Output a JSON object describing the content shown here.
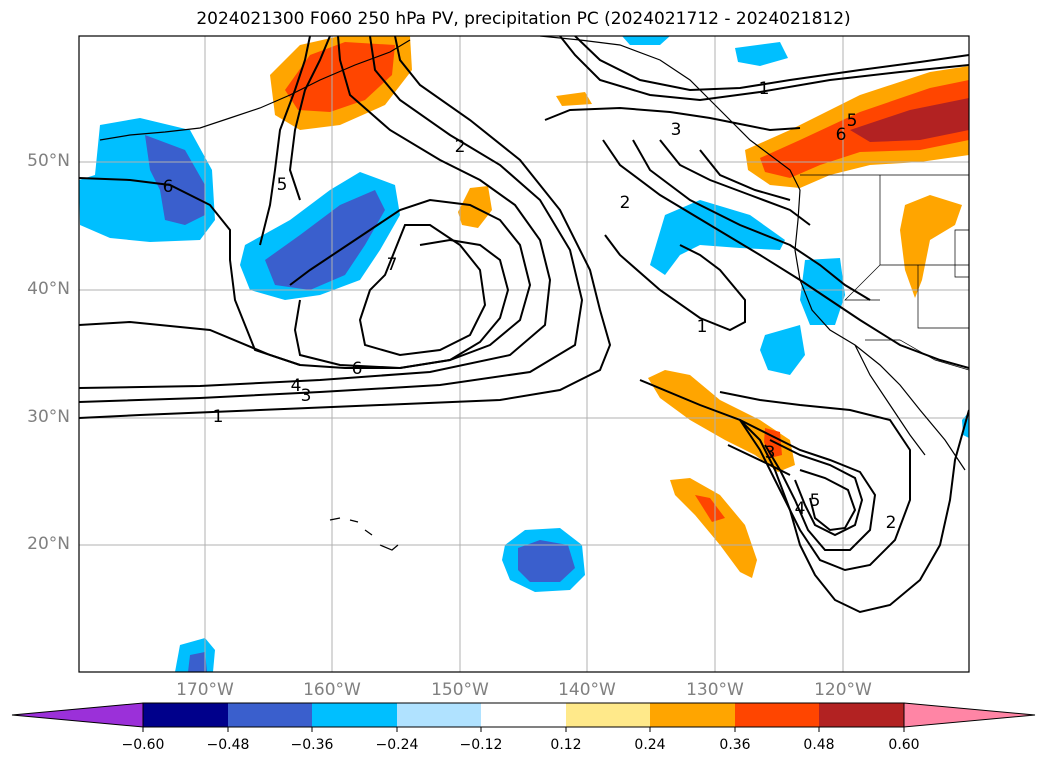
{
  "title": "2024021300 F060 250 hPa PV, precipitation PC (2024021712 - 2024021812)",
  "map": {
    "lat_labels": [
      "50°N",
      "40°N",
      "30°N",
      "20°N"
    ],
    "lon_labels": [
      "170°W",
      "160°W",
      "150°W",
      "140°W",
      "130°W",
      "120°W"
    ],
    "contour_labels": [
      "6",
      "5",
      "7",
      "6",
      "4",
      "3",
      "1",
      "2",
      "2",
      "1",
      "3",
      "1",
      "5",
      "6",
      "3",
      "5",
      "4",
      "2"
    ],
    "positive_colors": [
      "#ffe98a",
      "#ffa500",
      "#ff4500",
      "#b22222",
      "#ff85a5"
    ],
    "negative_colors": [
      "#9b30d9",
      "#00008b",
      "#3a5fcd",
      "#00bfff",
      "#b0e2ff"
    ]
  },
  "colorbar": {
    "ticks": [
      "−0.60",
      "−0.48",
      "−0.36",
      "−0.24",
      "−0.12",
      "0.12",
      "0.24",
      "0.36",
      "0.48",
      "0.60"
    ],
    "colors": [
      "#9b30d9",
      "#00008b",
      "#3a5fcd",
      "#00bfff",
      "#b0e2ff",
      "#ffffff",
      "#ffe98a",
      "#ffa500",
      "#ff4500",
      "#b22222",
      "#ff85a5"
    ]
  }
}
